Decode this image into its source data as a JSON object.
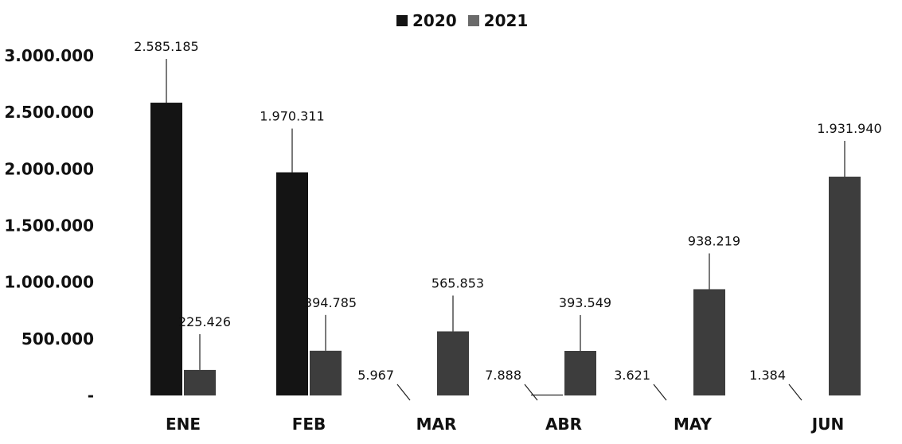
{
  "chart_data": {
    "type": "bar",
    "title": "",
    "xlabel": "",
    "ylabel": "",
    "categories": [
      "ENE",
      "FEB",
      "MAR",
      "ABR",
      "MAY",
      "JUN"
    ],
    "series": [
      {
        "name": "2020",
        "color": "#141414",
        "values": [
          2585185,
          1970311,
          5967,
          7888,
          3621,
          1384
        ],
        "labels": [
          "2.585.185",
          "1.970.311",
          "5.967",
          "7.888",
          "3.621",
          "1.384"
        ]
      },
      {
        "name": "2021",
        "color": "#3d3d3d",
        "values": [
          225426,
          394785,
          565853,
          393549,
          938219,
          1931940
        ],
        "labels": [
          "225.426",
          "394.785",
          "565.853",
          "393.549",
          "938.219",
          "1.931.940"
        ]
      }
    ],
    "y_ticks": [
      {
        "value": 0,
        "label": "-"
      },
      {
        "value": 500000,
        "label": "500.000"
      },
      {
        "value": 1000000,
        "label": "1.000.000"
      },
      {
        "value": 1500000,
        "label": "1.500.000"
      },
      {
        "value": 2000000,
        "label": "2.000.000"
      },
      {
        "value": 2500000,
        "label": "2.500.000"
      },
      {
        "value": 3000000,
        "label": "3.000.000"
      }
    ],
    "ylim": [
      0,
      3000000
    ],
    "grid": false,
    "legend_position": "top-center"
  }
}
